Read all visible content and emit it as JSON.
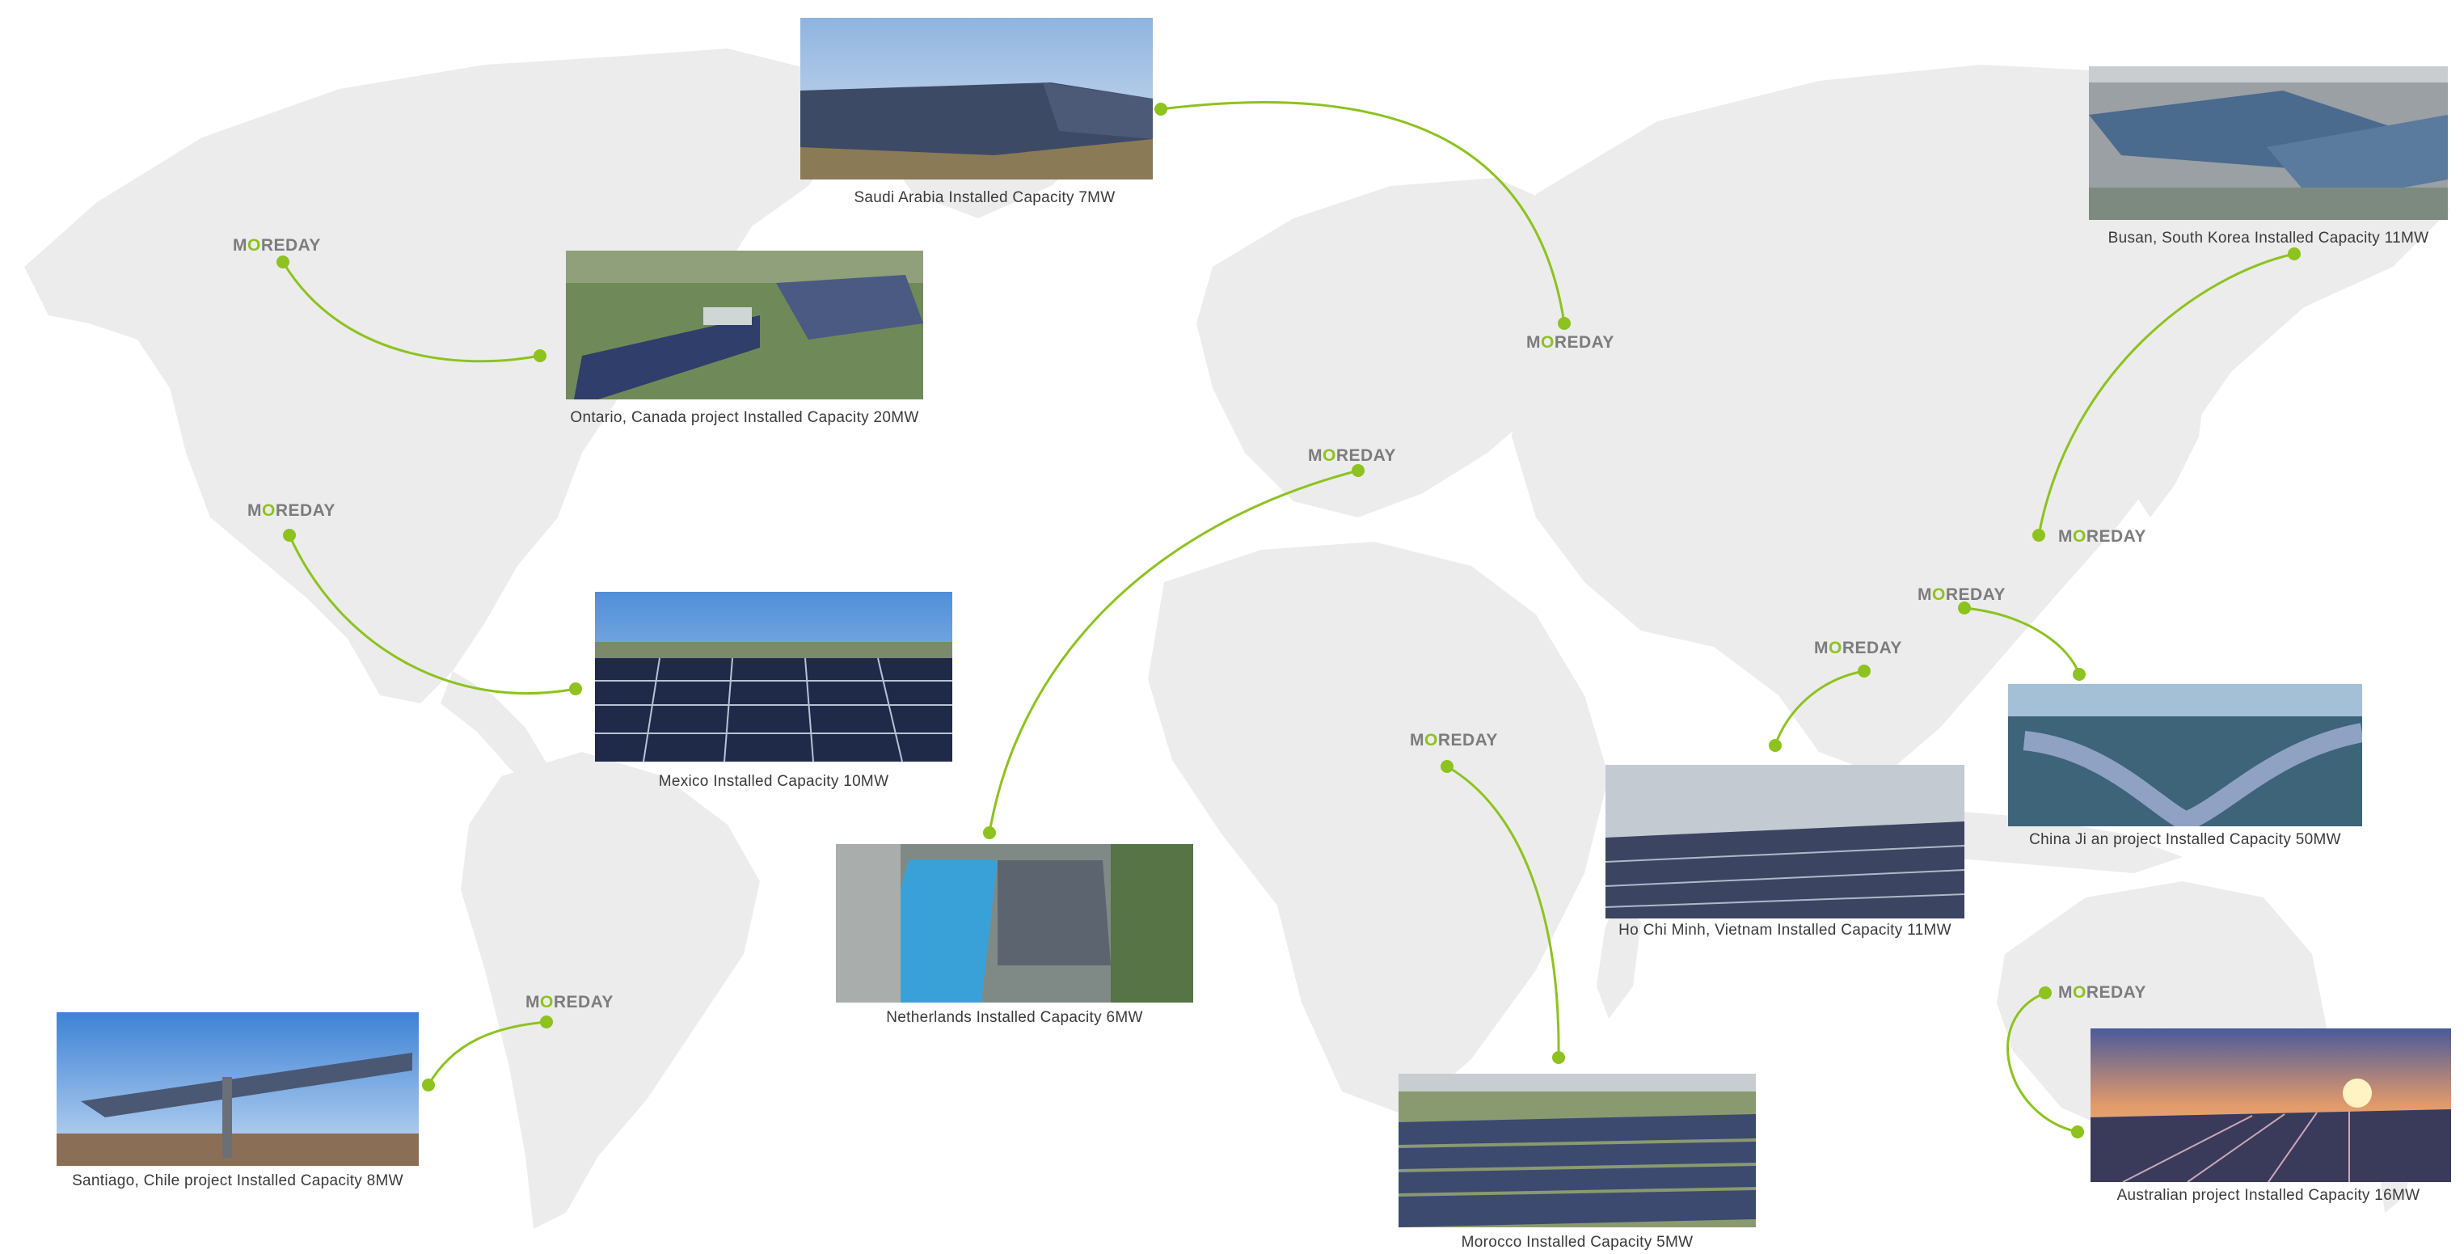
{
  "brand": {
    "prefix": "M",
    "o": "O",
    "suffix": "REDAY"
  },
  "colors": {
    "accent": "#8dc21f",
    "land": "#ececec",
    "caption": "#3a3a3a",
    "logo_gray": "#7c7c7c"
  },
  "projects": [
    {
      "id": "saudi-arabia",
      "caption": "Saudi Arabia Installed Capacity 7MW"
    },
    {
      "id": "busan",
      "caption": "Busan, South Korea Installed Capacity 11MW"
    },
    {
      "id": "ontario",
      "caption": "Ontario, Canada project Installed Capacity 20MW"
    },
    {
      "id": "mexico",
      "caption": "Mexico Installed Capacity 10MW"
    },
    {
      "id": "netherlands",
      "caption": "Netherlands Installed Capacity 6MW"
    },
    {
      "id": "santiago",
      "caption": "Santiago, Chile project Installed Capacity 8MW"
    },
    {
      "id": "morocco",
      "caption": "Morocco Installed Capacity 5MW"
    },
    {
      "id": "ho-chi-minh",
      "caption": "Ho Chi Minh, Vietnam Installed Capacity 11MW"
    },
    {
      "id": "china-jian",
      "caption": "China Ji an project Installed Capacity 50MW"
    },
    {
      "id": "australia",
      "caption": "Australian project Installed Capacity 16MW"
    }
  ]
}
